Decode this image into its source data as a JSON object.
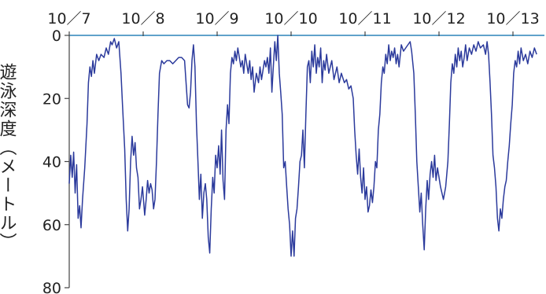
{
  "chart_data": {
    "type": "line",
    "title": "",
    "xlabel": "",
    "ylabel": "遊泳深度（メートル）",
    "x_categories": [
      "10／7",
      "10／8",
      "10／9",
      "10／10",
      "10／11",
      "10／12",
      "10／13"
    ],
    "y_ticks": [
      0,
      20,
      40,
      60,
      80
    ],
    "ylim": [
      0,
      80
    ],
    "y_inverted": true,
    "grid": false,
    "colors": {
      "line": "#2b3a9c",
      "axis": "#2b84b8"
    },
    "series": [
      {
        "values": [
          [
            0.0,
            47
          ],
          [
            0.02,
            38
          ],
          [
            0.04,
            45
          ],
          [
            0.06,
            37
          ],
          [
            0.08,
            50
          ],
          [
            0.1,
            41
          ],
          [
            0.12,
            58
          ],
          [
            0.14,
            54
          ],
          [
            0.16,
            61
          ],
          [
            0.18,
            52
          ],
          [
            0.21,
            42
          ],
          [
            0.24,
            28
          ],
          [
            0.26,
            15
          ],
          [
            0.28,
            10
          ],
          [
            0.3,
            13
          ],
          [
            0.32,
            8
          ],
          [
            0.34,
            12
          ],
          [
            0.37,
            6
          ],
          [
            0.4,
            8
          ],
          [
            0.43,
            6
          ],
          [
            0.47,
            7
          ],
          [
            0.5,
            4
          ],
          [
            0.53,
            6
          ],
          [
            0.56,
            2
          ],
          [
            0.58,
            3
          ],
          [
            0.61,
            1
          ],
          [
            0.64,
            4
          ],
          [
            0.67,
            2
          ],
          [
            0.7,
            12
          ],
          [
            0.72,
            22
          ],
          [
            0.75,
            36
          ],
          [
            0.77,
            52
          ],
          [
            0.79,
            62
          ],
          [
            0.81,
            55
          ],
          [
            0.83,
            40
          ],
          [
            0.85,
            32
          ],
          [
            0.87,
            38
          ],
          [
            0.89,
            34
          ],
          [
            0.91,
            42
          ],
          [
            0.93,
            45
          ],
          [
            0.95,
            55
          ],
          [
            0.97,
            52
          ],
          [
            0.99,
            48
          ],
          [
            1.02,
            57
          ],
          [
            1.04,
            52
          ],
          [
            1.06,
            46
          ],
          [
            1.08,
            50
          ],
          [
            1.1,
            47
          ],
          [
            1.12,
            49
          ],
          [
            1.14,
            55
          ],
          [
            1.16,
            52
          ],
          [
            1.18,
            40
          ],
          [
            1.2,
            25
          ],
          [
            1.22,
            12
          ],
          [
            1.25,
            8
          ],
          [
            1.28,
            9
          ],
          [
            1.32,
            8
          ],
          [
            1.36,
            8
          ],
          [
            1.4,
            9
          ],
          [
            1.44,
            8
          ],
          [
            1.48,
            7
          ],
          [
            1.52,
            7
          ],
          [
            1.56,
            8
          ],
          [
            1.58,
            15
          ],
          [
            1.6,
            22
          ],
          [
            1.62,
            23
          ],
          [
            1.64,
            18
          ],
          [
            1.66,
            8
          ],
          [
            1.68,
            3
          ],
          [
            1.7,
            10
          ],
          [
            1.72,
            28
          ],
          [
            1.74,
            40
          ],
          [
            1.76,
            52
          ],
          [
            1.78,
            44
          ],
          [
            1.8,
            58
          ],
          [
            1.82,
            50
          ],
          [
            1.84,
            47
          ],
          [
            1.86,
            52
          ],
          [
            1.88,
            64
          ],
          [
            1.9,
            69
          ],
          [
            1.92,
            55
          ],
          [
            1.94,
            45
          ],
          [
            1.96,
            50
          ],
          [
            1.98,
            38
          ],
          [
            2.0,
            42
          ],
          [
            2.02,
            35
          ],
          [
            2.04,
            44
          ],
          [
            2.06,
            30
          ],
          [
            2.08,
            46
          ],
          [
            2.1,
            52
          ],
          [
            2.12,
            30
          ],
          [
            2.14,
            22
          ],
          [
            2.16,
            28
          ],
          [
            2.18,
            12
          ],
          [
            2.2,
            7
          ],
          [
            2.22,
            9
          ],
          [
            2.24,
            5
          ],
          [
            2.26,
            8
          ],
          [
            2.28,
            4
          ],
          [
            2.3,
            7
          ],
          [
            2.32,
            10
          ],
          [
            2.34,
            8
          ],
          [
            2.36,
            12
          ],
          [
            2.38,
            6
          ],
          [
            2.4,
            9
          ],
          [
            2.42,
            12
          ],
          [
            2.44,
            8
          ],
          [
            2.46,
            14
          ],
          [
            2.48,
            10
          ],
          [
            2.5,
            18
          ],
          [
            2.53,
            12
          ],
          [
            2.56,
            15
          ],
          [
            2.58,
            10
          ],
          [
            2.6,
            14
          ],
          [
            2.62,
            11
          ],
          [
            2.64,
            8
          ],
          [
            2.66,
            10
          ],
          [
            2.68,
            7
          ],
          [
            2.7,
            12
          ],
          [
            2.72,
            4
          ],
          [
            2.74,
            18
          ],
          [
            2.76,
            10
          ],
          [
            2.78,
            2
          ],
          [
            2.8,
            8
          ],
          [
            2.82,
            0
          ],
          [
            2.84,
            12
          ],
          [
            2.86,
            18
          ],
          [
            2.88,
            25
          ],
          [
            2.9,
            42
          ],
          [
            2.92,
            40
          ],
          [
            2.94,
            48
          ],
          [
            2.96,
            55
          ],
          [
            2.98,
            60
          ],
          [
            3.0,
            70
          ],
          [
            3.02,
            62
          ],
          [
            3.04,
            70
          ],
          [
            3.06,
            58
          ],
          [
            3.08,
            55
          ],
          [
            3.1,
            48
          ],
          [
            3.12,
            40
          ],
          [
            3.14,
            38
          ],
          [
            3.16,
            30
          ],
          [
            3.18,
            42
          ],
          [
            3.2,
            25
          ],
          [
            3.22,
            10
          ],
          [
            3.24,
            8
          ],
          [
            3.26,
            15
          ],
          [
            3.28,
            5
          ],
          [
            3.3,
            10
          ],
          [
            3.32,
            3
          ],
          [
            3.34,
            12
          ],
          [
            3.36,
            7
          ],
          [
            3.38,
            10
          ],
          [
            3.4,
            4
          ],
          [
            3.42,
            15
          ],
          [
            3.44,
            8
          ],
          [
            3.46,
            11
          ],
          [
            3.48,
            6
          ],
          [
            3.51,
            12
          ],
          [
            3.55,
            8
          ],
          [
            3.58,
            14
          ],
          [
            3.62,
            10
          ],
          [
            3.65,
            15
          ],
          [
            3.68,
            12
          ],
          [
            3.72,
            15
          ],
          [
            3.75,
            14
          ],
          [
            3.78,
            17
          ],
          [
            3.81,
            16
          ],
          [
            3.84,
            20
          ],
          [
            3.86,
            30
          ],
          [
            3.88,
            38
          ],
          [
            3.9,
            44
          ],
          [
            3.92,
            36
          ],
          [
            3.94,
            45
          ],
          [
            3.96,
            50
          ],
          [
            3.98,
            42
          ],
          [
            4.0,
            52
          ],
          [
            4.02,
            48
          ],
          [
            4.04,
            56
          ],
          [
            4.06,
            54
          ],
          [
            4.08,
            49
          ],
          [
            4.1,
            53
          ],
          [
            4.12,
            48
          ],
          [
            4.14,
            40
          ],
          [
            4.16,
            42
          ],
          [
            4.18,
            30
          ],
          [
            4.2,
            25
          ],
          [
            4.22,
            15
          ],
          [
            4.24,
            10
          ],
          [
            4.26,
            12
          ],
          [
            4.28,
            6
          ],
          [
            4.3,
            9
          ],
          [
            4.32,
            3
          ],
          [
            4.34,
            8
          ],
          [
            4.36,
            5
          ],
          [
            4.38,
            7
          ],
          [
            4.4,
            4
          ],
          [
            4.42,
            9
          ],
          [
            4.44,
            6
          ],
          [
            4.46,
            10
          ],
          [
            4.49,
            3
          ],
          [
            4.52,
            5
          ],
          [
            4.55,
            4
          ],
          [
            4.58,
            3
          ],
          [
            4.61,
            2
          ],
          [
            4.63,
            5
          ],
          [
            4.66,
            12
          ],
          [
            4.68,
            25
          ],
          [
            4.7,
            40
          ],
          [
            4.72,
            48
          ],
          [
            4.74,
            56
          ],
          [
            4.76,
            50
          ],
          [
            4.78,
            60
          ],
          [
            4.8,
            68
          ],
          [
            4.82,
            55
          ],
          [
            4.84,
            46
          ],
          [
            4.86,
            52
          ],
          [
            4.88,
            44
          ],
          [
            4.9,
            40
          ],
          [
            4.92,
            45
          ],
          [
            4.94,
            38
          ],
          [
            4.96,
            46
          ],
          [
            4.98,
            42
          ],
          [
            5.02,
            48
          ],
          [
            5.06,
            52
          ],
          [
            5.09,
            48
          ],
          [
            5.12,
            40
          ],
          [
            5.14,
            28
          ],
          [
            5.16,
            15
          ],
          [
            5.18,
            9
          ],
          [
            5.2,
            12
          ],
          [
            5.22,
            6
          ],
          [
            5.24,
            10
          ],
          [
            5.26,
            4
          ],
          [
            5.28,
            8
          ],
          [
            5.3,
            5
          ],
          [
            5.32,
            10
          ],
          [
            5.34,
            7
          ],
          [
            5.36,
            3
          ],
          [
            5.38,
            8
          ],
          [
            5.41,
            4
          ],
          [
            5.44,
            6
          ],
          [
            5.47,
            3
          ],
          [
            5.5,
            5
          ],
          [
            5.53,
            2
          ],
          [
            5.56,
            4
          ],
          [
            5.6,
            3
          ],
          [
            5.63,
            6
          ],
          [
            5.65,
            2
          ],
          [
            5.67,
            6
          ],
          [
            5.69,
            15
          ],
          [
            5.71,
            25
          ],
          [
            5.73,
            38
          ],
          [
            5.75,
            42
          ],
          [
            5.77,
            48
          ],
          [
            5.79,
            58
          ],
          [
            5.81,
            62
          ],
          [
            5.83,
            55
          ],
          [
            5.85,
            58
          ],
          [
            5.87,
            52
          ],
          [
            5.89,
            48
          ],
          [
            5.91,
            46
          ],
          [
            5.93,
            40
          ],
          [
            5.95,
            35
          ],
          [
            5.97,
            28
          ],
          [
            5.99,
            22
          ],
          [
            6.01,
            12
          ],
          [
            6.03,
            8
          ],
          [
            6.05,
            10
          ],
          [
            6.07,
            5
          ],
          [
            6.09,
            9
          ],
          [
            6.11,
            4
          ],
          [
            6.14,
            8
          ],
          [
            6.17,
            6
          ],
          [
            6.2,
            9
          ],
          [
            6.23,
            5
          ],
          [
            6.26,
            7
          ],
          [
            6.29,
            4
          ],
          [
            6.32,
            6
          ]
        ]
      }
    ]
  }
}
